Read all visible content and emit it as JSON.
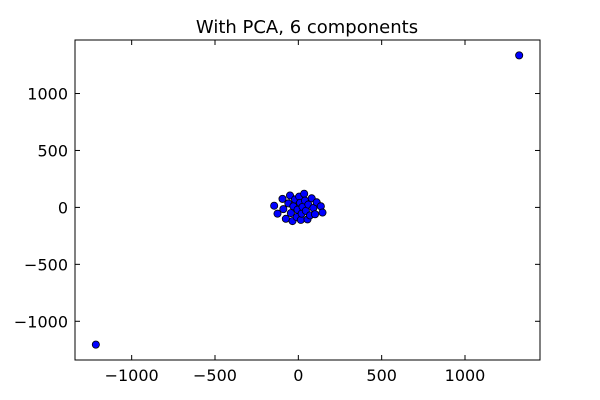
{
  "chart_data": {
    "type": "scatter",
    "title": "With PCA, 6 components",
    "xlabel": "",
    "ylabel": "",
    "xlim": [
      -1340,
      1450
    ],
    "ylim": [
      -1340,
      1470
    ],
    "xticks": [
      -1000,
      -500,
      0,
      500,
      1000
    ],
    "yticks": [
      -1000,
      -500,
      0,
      500,
      1000
    ],
    "xtick_labels": [
      "−1000",
      "−500",
      "0",
      "500",
      "1000"
    ],
    "ytick_labels": [
      "−1000",
      "−500",
      "0",
      "500",
      "1000"
    ],
    "grid": false,
    "marker_color": "#0000ff",
    "points": [
      {
        "x": 1325,
        "y": 1335
      },
      {
        "x": -1215,
        "y": -1205
      },
      {
        "x": -145,
        "y": 15
      },
      {
        "x": -125,
        "y": -55
      },
      {
        "x": -95,
        "y": 75
      },
      {
        "x": -90,
        "y": -15
      },
      {
        "x": -75,
        "y": -100
      },
      {
        "x": -60,
        "y": 35
      },
      {
        "x": -50,
        "y": 105
      },
      {
        "x": -45,
        "y": -50
      },
      {
        "x": -35,
        "y": -120
      },
      {
        "x": -30,
        "y": 10
      },
      {
        "x": -20,
        "y": 70
      },
      {
        "x": -10,
        "y": -85
      },
      {
        "x": -5,
        "y": -20
      },
      {
        "x": 5,
        "y": 95
      },
      {
        "x": 10,
        "y": 40
      },
      {
        "x": 15,
        "y": -110
      },
      {
        "x": 20,
        "y": -55
      },
      {
        "x": 25,
        "y": 5
      },
      {
        "x": 35,
        "y": 120
      },
      {
        "x": 40,
        "y": 60
      },
      {
        "x": 45,
        "y": -30
      },
      {
        "x": 55,
        "y": -105
      },
      {
        "x": 60,
        "y": 25
      },
      {
        "x": 70,
        "y": -70
      },
      {
        "x": 80,
        "y": 80
      },
      {
        "x": 90,
        "y": -5
      },
      {
        "x": 100,
        "y": -60
      },
      {
        "x": 110,
        "y": 45
      },
      {
        "x": 135,
        "y": 10
      },
      {
        "x": 145,
        "y": -45
      }
    ]
  }
}
